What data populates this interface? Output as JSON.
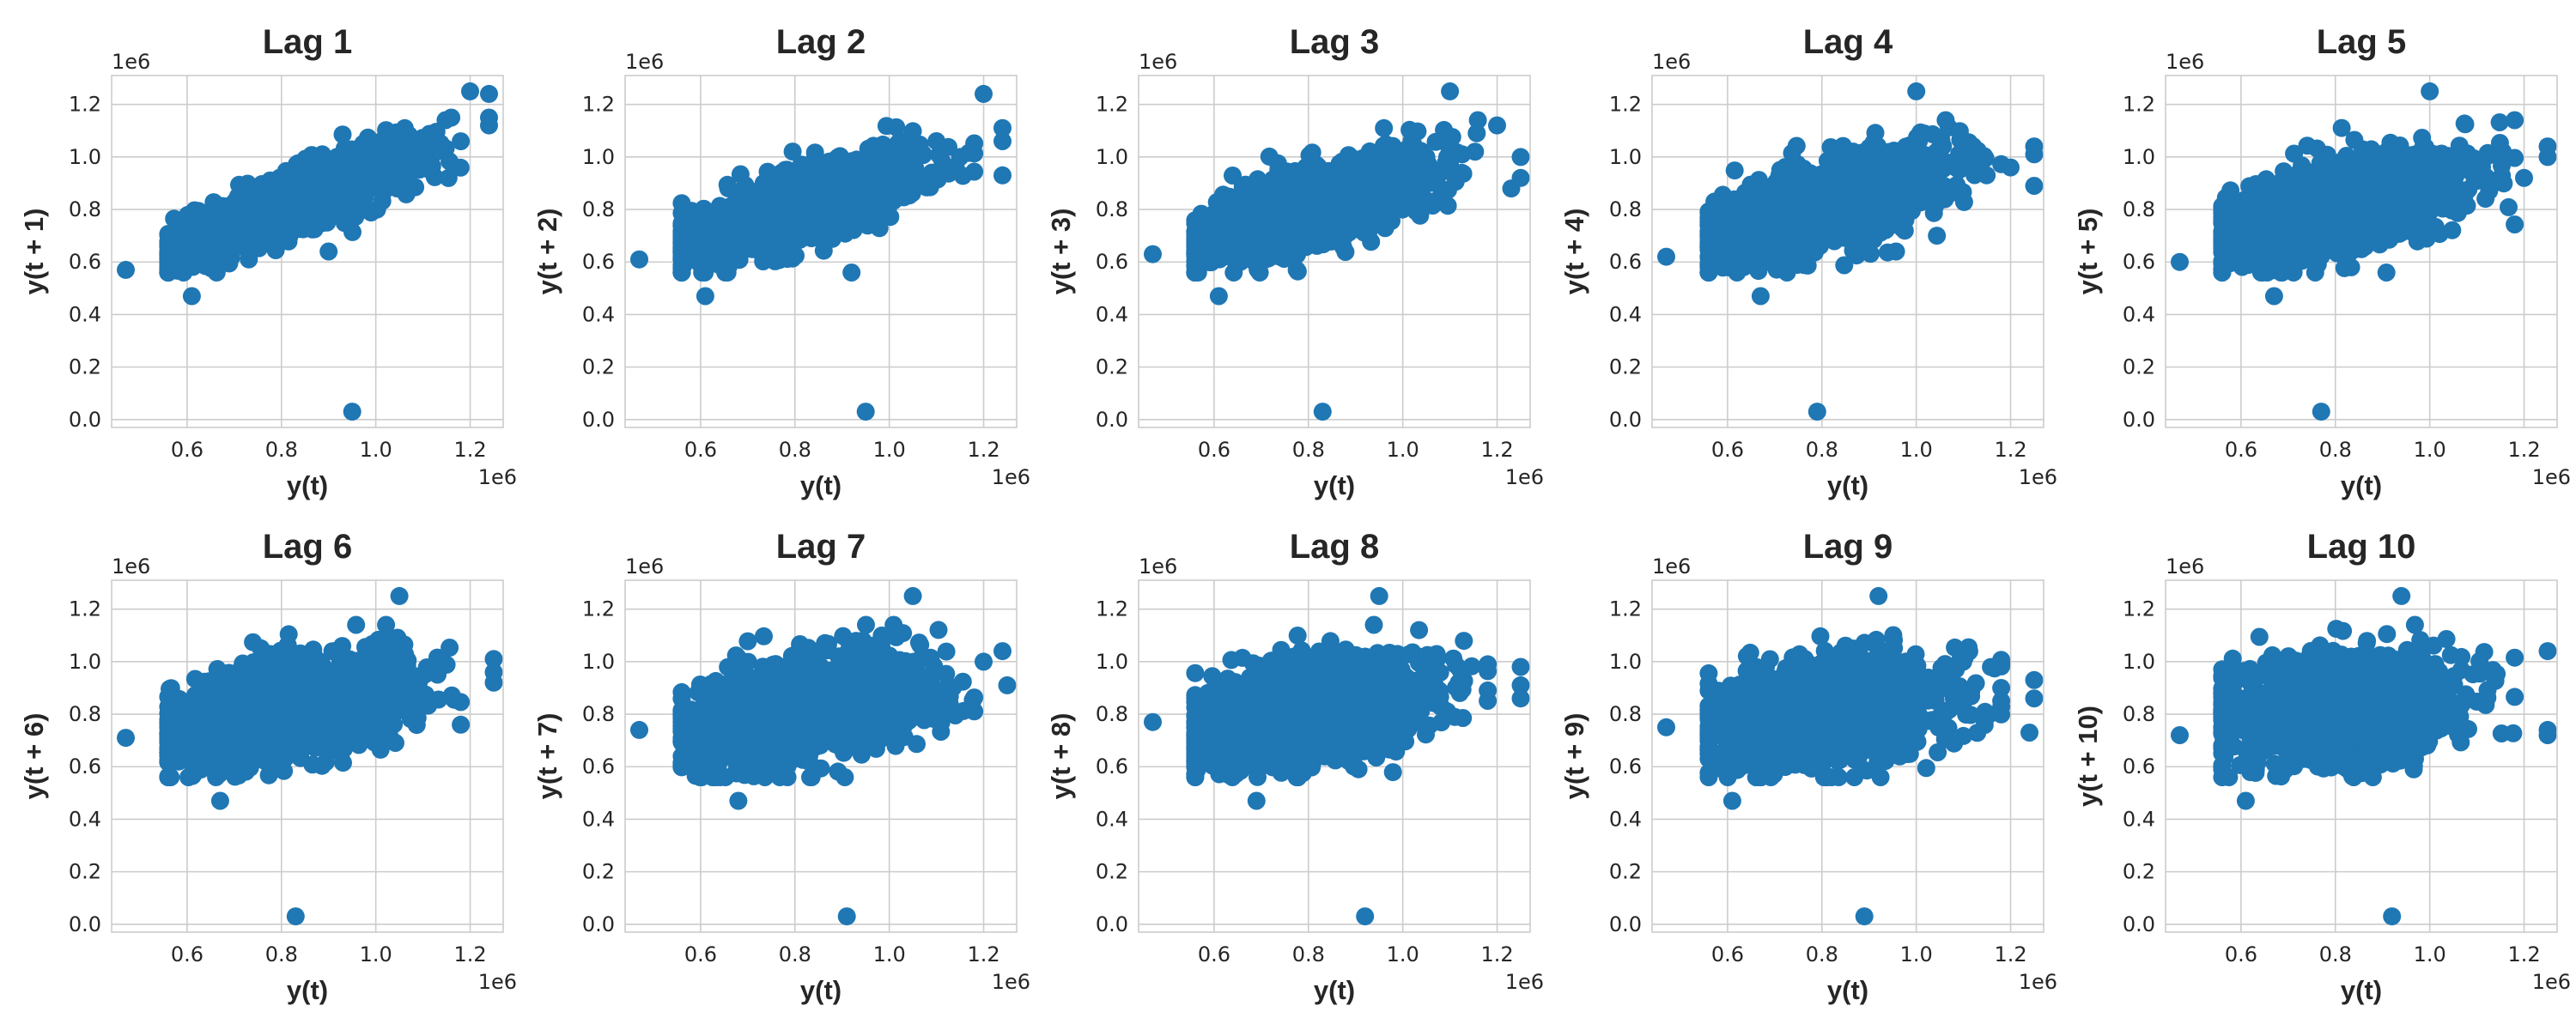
{
  "chart_data": [
    {
      "type": "scatter",
      "title": "Lag 1",
      "xlabel": "y(t)",
      "ylabel": "y(t + 1)",
      "color": "#1f77b4",
      "xlim": [
        440000,
        1270000
      ],
      "ylim": [
        -30000,
        1310000
      ],
      "x_ticks": [
        "0.6",
        "0.8",
        "1.0",
        "1.2"
      ],
      "y_ticks": [
        "0.0",
        "0.2",
        "0.4",
        "0.6",
        "0.8",
        "1.0",
        "1.2"
      ],
      "x_offset_label": "1e6",
      "y_offset_label": "1e6",
      "points": [
        [
          470000,
          570000
        ],
        [
          560000,
          640000
        ],
        [
          610000,
          470000
        ],
        [
          620000,
          640000
        ],
        [
          680000,
          700000
        ],
        [
          750000,
          760000
        ],
        [
          820000,
          820000
        ],
        [
          880000,
          880000
        ],
        [
          950000,
          930000
        ],
        [
          1000000,
          970000
        ],
        [
          1060000,
          1020000
        ],
        [
          1110000,
          1080000
        ],
        [
          1160000,
          1150000
        ],
        [
          1200000,
          1250000
        ],
        [
          1240000,
          1240000
        ],
        [
          1240000,
          1150000
        ],
        [
          1240000,
          1120000
        ],
        [
          900000,
          640000
        ],
        [
          950000,
          30000
        ]
      ]
    },
    {
      "type": "scatter",
      "title": "Lag 2",
      "xlabel": "y(t)",
      "ylabel": "y(t + 2)",
      "color": "#1f77b4",
      "xlim": [
        440000,
        1270000
      ],
      "ylim": [
        -30000,
        1310000
      ],
      "x_ticks": [
        "0.6",
        "0.8",
        "1.0",
        "1.2"
      ],
      "y_ticks": [
        "0.0",
        "0.2",
        "0.4",
        "0.6",
        "0.8",
        "1.0",
        "1.2"
      ],
      "x_offset_label": "1e6",
      "y_offset_label": "1e6",
      "points": [
        [
          470000,
          610000
        ],
        [
          610000,
          470000
        ],
        [
          600000,
          680000
        ],
        [
          700000,
          760000
        ],
        [
          800000,
          850000
        ],
        [
          900000,
          920000
        ],
        [
          1000000,
          980000
        ],
        [
          1100000,
          1060000
        ],
        [
          1150000,
          1000000
        ],
        [
          1200000,
          1240000
        ],
        [
          1240000,
          1110000
        ],
        [
          1240000,
          1060000
        ],
        [
          1240000,
          930000
        ],
        [
          920000,
          560000
        ],
        [
          950000,
          30000
        ]
      ]
    },
    {
      "type": "scatter",
      "title": "Lag 3",
      "xlabel": "y(t)",
      "ylabel": "y(t + 3)",
      "color": "#1f77b4",
      "xlim": [
        440000,
        1270000
      ],
      "ylim": [
        -30000,
        1310000
      ],
      "x_ticks": [
        "0.6",
        "0.8",
        "1.0",
        "1.2"
      ],
      "y_ticks": [
        "0.0",
        "0.2",
        "0.4",
        "0.6",
        "0.8",
        "1.0",
        "1.2"
      ],
      "x_offset_label": "1e6",
      "y_offset_label": "1e6",
      "points": [
        [
          470000,
          630000
        ],
        [
          610000,
          470000
        ],
        [
          650000,
          820000
        ],
        [
          800000,
          900000
        ],
        [
          950000,
          950000
        ],
        [
          1050000,
          1000000
        ],
        [
          1100000,
          1250000
        ],
        [
          1200000,
          1120000
        ],
        [
          1250000,
          1000000
        ],
        [
          1250000,
          920000
        ],
        [
          1230000,
          880000
        ],
        [
          830000,
          30000
        ]
      ]
    },
    {
      "type": "scatter",
      "title": "Lag 4",
      "xlabel": "y(t)",
      "ylabel": "y(t + 4)",
      "color": "#1f77b4",
      "xlim": [
        440000,
        1270000
      ],
      "ylim": [
        -30000,
        1310000
      ],
      "x_ticks": [
        "0.6",
        "0.8",
        "1.0",
        "1.2"
      ],
      "y_ticks": [
        "0.0",
        "0.2",
        "0.4",
        "0.6",
        "0.8",
        "1.0",
        "1.2"
      ],
      "x_offset_label": "1e6",
      "y_offset_label": "1e6",
      "points": [
        [
          470000,
          620000
        ],
        [
          670000,
          470000
        ],
        [
          700000,
          850000
        ],
        [
          850000,
          900000
        ],
        [
          1000000,
          950000
        ],
        [
          1000000,
          1250000
        ],
        [
          1200000,
          960000
        ],
        [
          1250000,
          1040000
        ],
        [
          1250000,
          1010000
        ],
        [
          1250000,
          890000
        ],
        [
          790000,
          30000
        ]
      ]
    },
    {
      "type": "scatter",
      "title": "Lag 5",
      "xlabel": "y(t)",
      "ylabel": "y(t + 5)",
      "color": "#1f77b4",
      "xlim": [
        440000,
        1270000
      ],
      "ylim": [
        -30000,
        1310000
      ],
      "x_ticks": [
        "0.6",
        "0.8",
        "1.0",
        "1.2"
      ],
      "y_ticks": [
        "0.0",
        "0.2",
        "0.4",
        "0.6",
        "0.8",
        "1.0",
        "1.2"
      ],
      "x_offset_label": "1e6",
      "y_offset_label": "1e6",
      "points": [
        [
          470000,
          600000
        ],
        [
          670000,
          470000
        ],
        [
          700000,
          850000
        ],
        [
          850000,
          900000
        ],
        [
          1000000,
          950000
        ],
        [
          1000000,
          1250000
        ],
        [
          1200000,
          920000
        ],
        [
          1250000,
          1040000
        ],
        [
          1250000,
          1000000
        ],
        [
          770000,
          30000
        ]
      ]
    },
    {
      "type": "scatter",
      "title": "Lag 6",
      "xlabel": "y(t)",
      "ylabel": "y(t + 6)",
      "color": "#1f77b4",
      "xlim": [
        440000,
        1270000
      ],
      "ylim": [
        -30000,
        1310000
      ],
      "x_ticks": [
        "0.6",
        "0.8",
        "1.0",
        "1.2"
      ],
      "y_ticks": [
        "0.0",
        "0.2",
        "0.4",
        "0.6",
        "0.8",
        "1.0",
        "1.2"
      ],
      "x_offset_label": "1e6",
      "y_offset_label": "1e6",
      "points": [
        [
          470000,
          710000
        ],
        [
          670000,
          470000
        ],
        [
          700000,
          850000
        ],
        [
          850000,
          900000
        ],
        [
          1000000,
          950000
        ],
        [
          1050000,
          1250000
        ],
        [
          1250000,
          1010000
        ],
        [
          1250000,
          960000
        ],
        [
          1250000,
          920000
        ],
        [
          1180000,
          760000
        ],
        [
          830000,
          30000
        ]
      ]
    },
    {
      "type": "scatter",
      "title": "Lag 7",
      "xlabel": "y(t)",
      "ylabel": "y(t + 7)",
      "color": "#1f77b4",
      "xlim": [
        440000,
        1270000
      ],
      "ylim": [
        -30000,
        1310000
      ],
      "x_ticks": [
        "0.6",
        "0.8",
        "1.0",
        "1.2"
      ],
      "y_ticks": [
        "0.0",
        "0.2",
        "0.4",
        "0.6",
        "0.8",
        "1.0",
        "1.2"
      ],
      "x_offset_label": "1e6",
      "y_offset_label": "1e6",
      "points": [
        [
          470000,
          740000
        ],
        [
          680000,
          470000
        ],
        [
          700000,
          800000
        ],
        [
          850000,
          880000
        ],
        [
          1000000,
          950000
        ],
        [
          1050000,
          1250000
        ],
        [
          1240000,
          1040000
        ],
        [
          1250000,
          910000
        ],
        [
          1200000,
          1000000
        ],
        [
          910000,
          30000
        ]
      ]
    },
    {
      "type": "scatter",
      "title": "Lag 8",
      "xlabel": "y(t)",
      "ylabel": "y(t + 8)",
      "color": "#1f77b4",
      "xlim": [
        440000,
        1270000
      ],
      "ylim": [
        -30000,
        1310000
      ],
      "x_ticks": [
        "0.6",
        "0.8",
        "1.0",
        "1.2"
      ],
      "y_ticks": [
        "0.0",
        "0.2",
        "0.4",
        "0.6",
        "0.8",
        "1.0",
        "1.2"
      ],
      "x_offset_label": "1e6",
      "y_offset_label": "1e6",
      "points": [
        [
          470000,
          770000
        ],
        [
          690000,
          470000
        ],
        [
          700000,
          800000
        ],
        [
          850000,
          880000
        ],
        [
          1000000,
          950000
        ],
        [
          950000,
          1250000
        ],
        [
          1250000,
          980000
        ],
        [
          1250000,
          910000
        ],
        [
          1250000,
          860000
        ],
        [
          920000,
          30000
        ]
      ]
    },
    {
      "type": "scatter",
      "title": "Lag 9",
      "xlabel": "y(t)",
      "ylabel": "y(t + 9)",
      "color": "#1f77b4",
      "xlim": [
        440000,
        1270000
      ],
      "ylim": [
        -30000,
        1310000
      ],
      "x_ticks": [
        "0.6",
        "0.8",
        "1.0",
        "1.2"
      ],
      "y_ticks": [
        "0.0",
        "0.2",
        "0.4",
        "0.6",
        "0.8",
        "1.0",
        "1.2"
      ],
      "x_offset_label": "1e6",
      "y_offset_label": "1e6",
      "points": [
        [
          470000,
          750000
        ],
        [
          610000,
          470000
        ],
        [
          700000,
          820000
        ],
        [
          850000,
          880000
        ],
        [
          1000000,
          950000
        ],
        [
          920000,
          1250000
        ],
        [
          1250000,
          930000
        ],
        [
          1250000,
          860000
        ],
        [
          1240000,
          730000
        ],
        [
          890000,
          30000
        ]
      ]
    },
    {
      "type": "scatter",
      "title": "Lag 10",
      "xlabel": "y(t)",
      "ylabel": "y(t + 10)",
      "color": "#1f77b4",
      "xlim": [
        440000,
        1270000
      ],
      "ylim": [
        -30000,
        1310000
      ],
      "x_ticks": [
        "0.6",
        "0.8",
        "1.0",
        "1.2"
      ],
      "y_ticks": [
        "0.0",
        "0.2",
        "0.4",
        "0.6",
        "0.8",
        "1.0",
        "1.2"
      ],
      "x_offset_label": "1e6",
      "y_offset_label": "1e6",
      "points": [
        [
          470000,
          720000
        ],
        [
          610000,
          470000
        ],
        [
          700000,
          820000
        ],
        [
          850000,
          880000
        ],
        [
          1000000,
          950000
        ],
        [
          940000,
          1250000
        ],
        [
          1250000,
          1040000
        ],
        [
          1250000,
          740000
        ],
        [
          1250000,
          720000
        ],
        [
          920000,
          30000
        ]
      ]
    }
  ]
}
